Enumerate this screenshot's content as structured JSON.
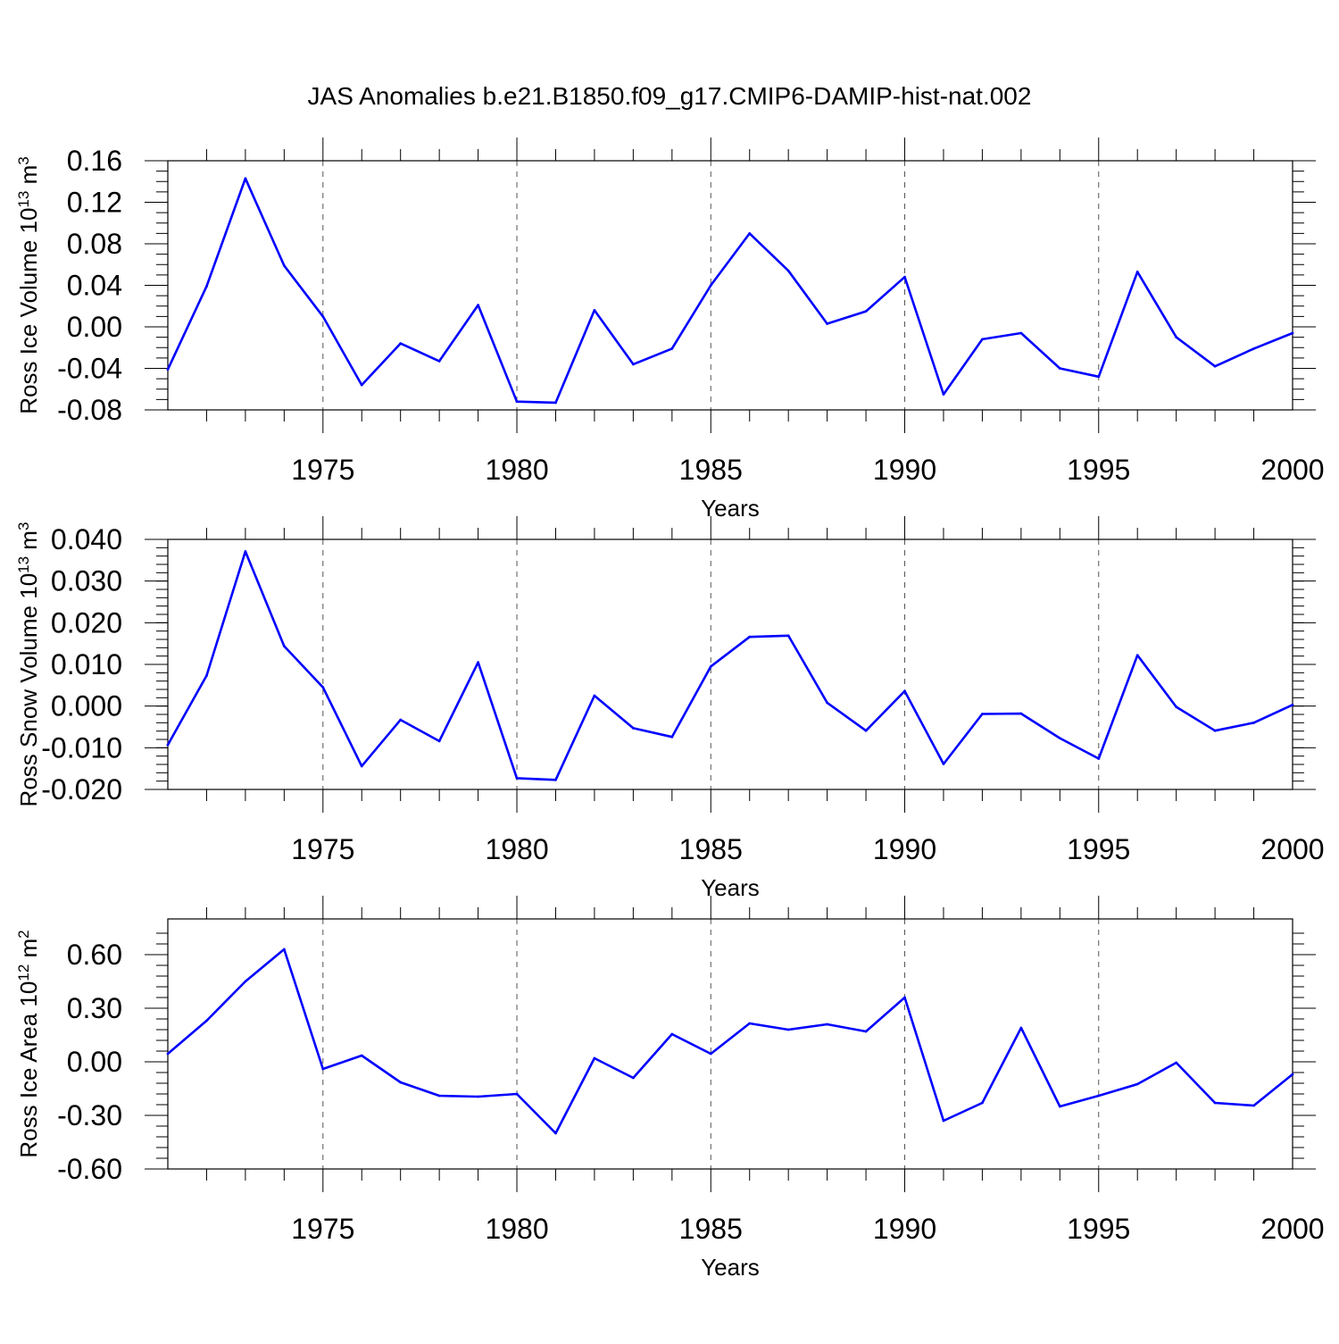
{
  "title": "JAS Anomalies b.e21.B1850.f09_g17.CMIP6-DAMIP-hist-nat.002",
  "colors": {
    "line": "#0000ff",
    "axis": "#000000",
    "grid": "#555555"
  },
  "chart_data": [
    {
      "type": "line",
      "ylabel": {
        "base": "Ross Ice Volume 10",
        "exp": "13",
        "unit": " m",
        "unit_exp": "3"
      },
      "xlabel": "Years",
      "xlim": [
        1971,
        2000
      ],
      "ylim": [
        -0.08,
        0.16
      ],
      "yticks": [
        -0.08,
        -0.04,
        0.0,
        0.04,
        0.08,
        0.12,
        0.16
      ],
      "ytick_labels": [
        "-0.08",
        "-0.04",
        "0.00",
        "0.04",
        "0.08",
        "0.12",
        "0.16"
      ],
      "xticks": [
        1975,
        1980,
        1985,
        1990,
        1995,
        2000
      ],
      "xtick_labels": [
        "1975",
        "1980",
        "1985",
        "1990",
        "1995",
        "2000"
      ],
      "x": [
        1971,
        1972,
        1973,
        1974,
        1975,
        1976,
        1977,
        1978,
        1979,
        1980,
        1981,
        1982,
        1983,
        1984,
        1985,
        1986,
        1987,
        1988,
        1989,
        1990,
        1991,
        1992,
        1993,
        1994,
        1995,
        1996,
        1997,
        1998,
        1999,
        2000
      ],
      "series": [
        {
          "name": "Ross Ice Volume",
          "values": [
            -0.041,
            0.039,
            0.143,
            0.059,
            0.01,
            -0.056,
            -0.016,
            -0.033,
            0.021,
            -0.072,
            -0.073,
            0.016,
            -0.036,
            -0.021,
            0.04,
            0.09,
            0.054,
            0.003,
            0.015,
            0.048,
            -0.065,
            -0.012,
            -0.006,
            -0.04,
            -0.048,
            0.053,
            -0.01,
            -0.038,
            -0.021,
            -0.006
          ]
        }
      ]
    },
    {
      "type": "line",
      "ylabel": {
        "base": "Ross Snow Volume 10",
        "exp": "13",
        "unit": " m",
        "unit_exp": "3"
      },
      "xlabel": "Years",
      "xlim": [
        1971,
        2000
      ],
      "ylim": [
        -0.02,
        0.04
      ],
      "yticks": [
        -0.02,
        -0.01,
        0.0,
        0.01,
        0.02,
        0.03,
        0.04
      ],
      "ytick_labels": [
        "-0.020",
        "-0.010",
        "0.000",
        "0.010",
        "0.020",
        "0.030",
        "0.040"
      ],
      "xticks": [
        1975,
        1980,
        1985,
        1990,
        1995,
        2000
      ],
      "xtick_labels": [
        "1975",
        "1980",
        "1985",
        "1990",
        "1995",
        "2000"
      ],
      "x": [
        1971,
        1972,
        1973,
        1974,
        1975,
        1976,
        1977,
        1978,
        1979,
        1980,
        1981,
        1982,
        1983,
        1984,
        1985,
        1986,
        1987,
        1988,
        1989,
        1990,
        1991,
        1992,
        1993,
        1994,
        1995,
        1996,
        1997,
        1998,
        1999,
        2000
      ],
      "series": [
        {
          "name": "Ross Snow Volume",
          "values": [
            -0.0093,
            0.0073,
            0.0371,
            0.0144,
            0.0045,
            -0.0144,
            -0.0033,
            -0.0084,
            0.0105,
            -0.0173,
            -0.0177,
            0.0025,
            -0.0053,
            -0.0074,
            0.0095,
            0.0166,
            0.0169,
            0.0008,
            -0.0059,
            0.0036,
            -0.0139,
            -0.0019,
            -0.0018,
            -0.0077,
            -0.0126,
            0.0122,
            -0.0002,
            -0.0059,
            -0.004,
            0.0003
          ]
        }
      ]
    },
    {
      "type": "line",
      "ylabel": {
        "base": "Ross Ice Area 10",
        "exp": "12",
        "unit": " m",
        "unit_exp": "2"
      },
      "xlabel": "Years",
      "xlim": [
        1971,
        2000
      ],
      "ylim": [
        -0.6,
        0.8
      ],
      "yticks": [
        -0.6,
        -0.3,
        0.0,
        0.3,
        0.6
      ],
      "ytick_labels": [
        "-0.60",
        "-0.30",
        "0.00",
        "0.30",
        "0.60"
      ],
      "xticks": [
        1975,
        1980,
        1985,
        1990,
        1995,
        2000
      ],
      "xtick_labels": [
        "1975",
        "1980",
        "1985",
        "1990",
        "1995",
        "2000"
      ],
      "x": [
        1971,
        1972,
        1973,
        1974,
        1975,
        1976,
        1977,
        1978,
        1979,
        1980,
        1981,
        1982,
        1983,
        1984,
        1985,
        1986,
        1987,
        1988,
        1989,
        1990,
        1991,
        1992,
        1993,
        1994,
        1995,
        1996,
        1997,
        1998,
        1999,
        2000
      ],
      "series": [
        {
          "name": "Ross Ice Area",
          "values": [
            0.045,
            0.23,
            0.45,
            0.63,
            -0.04,
            0.035,
            -0.115,
            -0.19,
            -0.195,
            -0.18,
            -0.4,
            0.02,
            -0.09,
            0.155,
            0.045,
            0.215,
            0.18,
            0.21,
            0.17,
            0.36,
            -0.33,
            -0.23,
            0.19,
            -0.25,
            -0.19,
            -0.125,
            -0.005,
            -0.23,
            -0.245,
            -0.07
          ]
        }
      ]
    }
  ]
}
